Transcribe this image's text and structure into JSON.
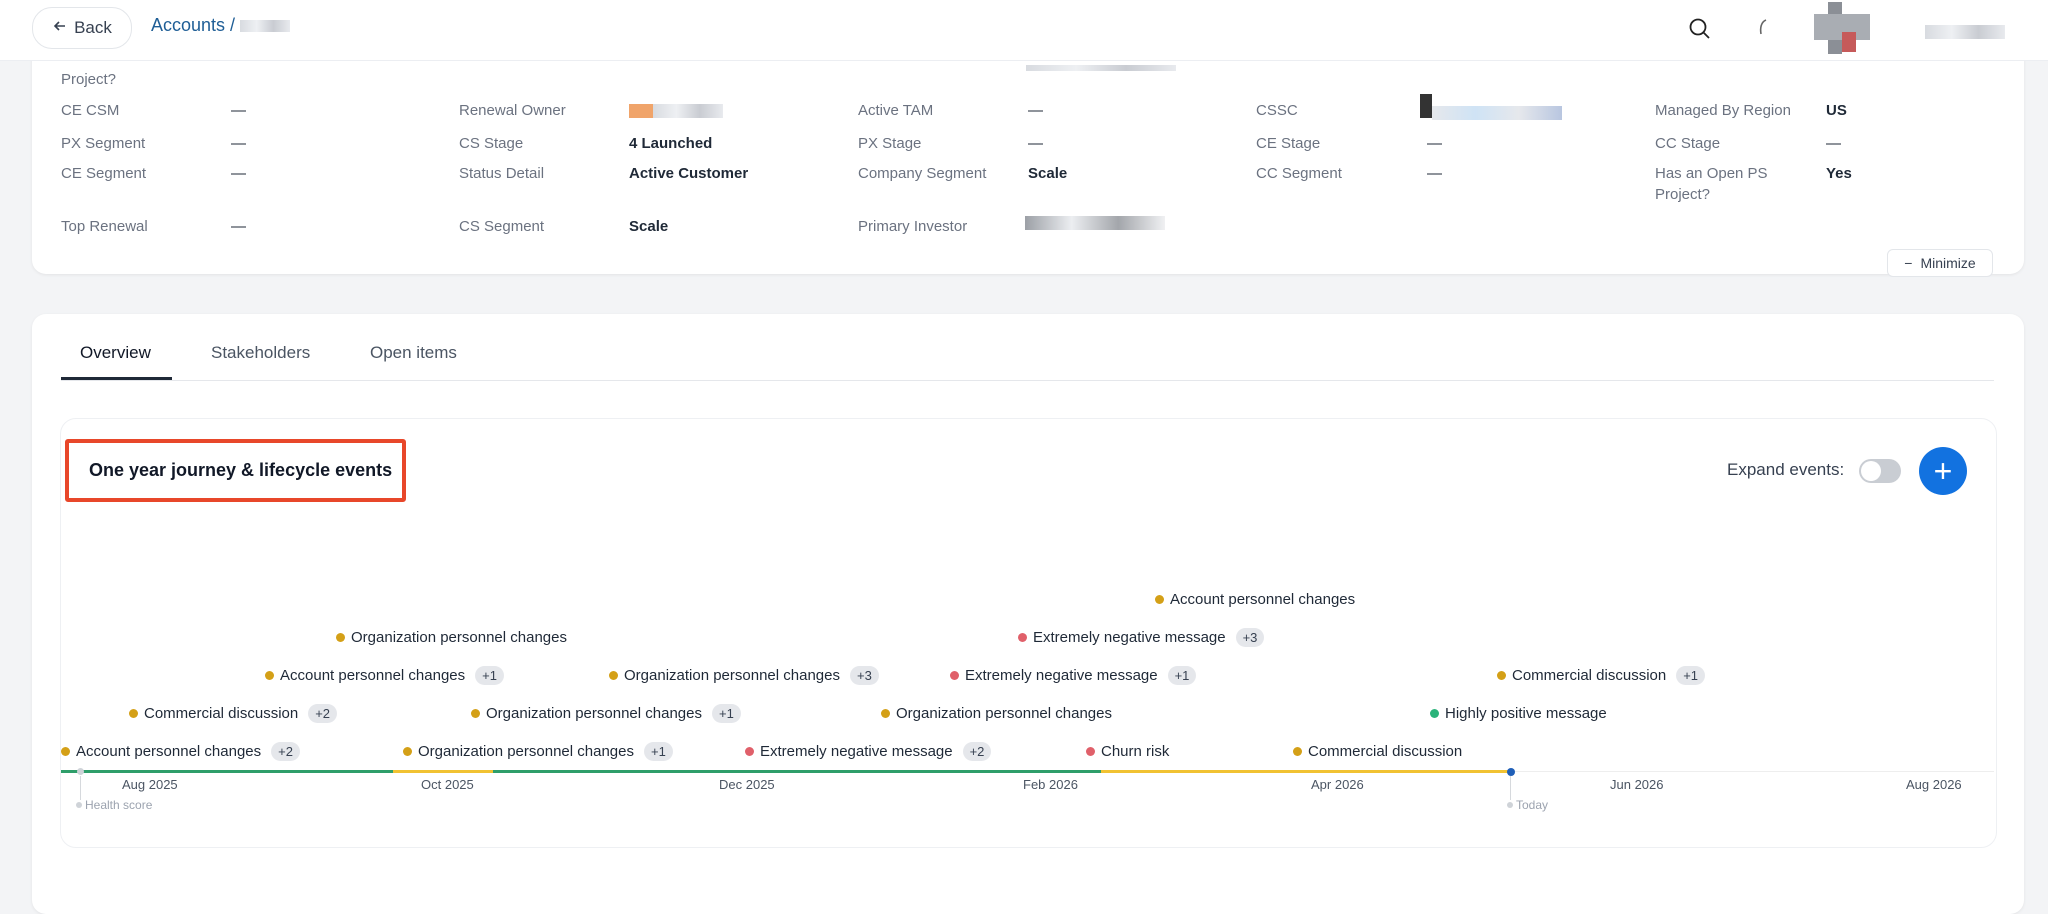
{
  "header": {
    "back_label": "Back",
    "breadcrumb_root": "Accounts /"
  },
  "details": {
    "top_row_labels": [
      "Project?"
    ],
    "rows": [
      [
        {
          "label": "CE CSM",
          "value": "—"
        },
        {
          "label": "Renewal Owner",
          "value": ""
        },
        {
          "label": "Active TAM",
          "value": "—"
        },
        {
          "label": "CSSC",
          "value": ""
        },
        {
          "label": "Managed By Region",
          "value": "US"
        }
      ],
      [
        {
          "label": "PX Segment",
          "value": "—"
        },
        {
          "label": "CS Stage",
          "value": "4 Launched"
        },
        {
          "label": "PX Stage",
          "value": "—"
        },
        {
          "label": "CE Stage",
          "value": "—"
        },
        {
          "label": "CC Stage",
          "value": "—"
        }
      ],
      [
        {
          "label": "CE Segment",
          "value": "—"
        },
        {
          "label": "Status Detail",
          "value": "Active Customer"
        },
        {
          "label": "Company Segment",
          "value": "Scale"
        },
        {
          "label": "CC Segment",
          "value": "—"
        },
        {
          "label": "Has an Open PS",
          "value": "Yes"
        }
      ],
      [
        {
          "label": "Top Renewal",
          "value": "—"
        },
        {
          "label": "CS Segment",
          "value": "Scale"
        },
        {
          "label": "Primary Investor",
          "value": ""
        }
      ]
    ],
    "has_open_ps_line2": "Project?",
    "minimize_label": "Minimize"
  },
  "tabs": [
    "Overview",
    "Stakeholders",
    "Open items"
  ],
  "journey": {
    "title": "One year journey & lifecycle events",
    "expand_label": "Expand events",
    "expand_colon": ":",
    "add_symbol": "+",
    "health_score_label": "Health score",
    "today_label": "Today",
    "months": [
      "Aug 2025",
      "Oct 2025",
      "Dec 2025",
      "Feb 2026",
      "Apr 2026",
      "Jun 2026",
      "Aug 2026"
    ],
    "colors": {
      "yellow": "#d4a017",
      "red": "#e0606a",
      "green": "#2bb37a",
      "line_green": "#2e9e6a",
      "line_yellow": "#f1c232",
      "accent": "#1272e0",
      "highlight": "#e8472a"
    },
    "events": [
      {
        "label": "Account personnel changes",
        "badge": "+2",
        "color": "yellow"
      },
      {
        "label": "Commercial discussion",
        "badge": "+2",
        "color": "yellow"
      },
      {
        "label": "Account personnel changes",
        "badge": "+1",
        "color": "yellow"
      },
      {
        "label": "Organization personnel changes",
        "badge": "",
        "color": "yellow"
      },
      {
        "label": "Organization personnel changes",
        "badge": "+1",
        "color": "yellow"
      },
      {
        "label": "Organization personnel changes",
        "badge": "+1",
        "color": "yellow"
      },
      {
        "label": "Organization personnel changes",
        "badge": "+3",
        "color": "yellow"
      },
      {
        "label": "Extremely negative message",
        "badge": "+2",
        "color": "red"
      },
      {
        "label": "Organization personnel changes",
        "badge": "",
        "color": "yellow"
      },
      {
        "label": "Extremely negative message",
        "badge": "+1",
        "color": "red"
      },
      {
        "label": "Extremely negative message",
        "badge": "+3",
        "color": "red"
      },
      {
        "label": "Account personnel changes",
        "badge": "",
        "color": "yellow"
      },
      {
        "label": "Churn risk",
        "badge": "",
        "color": "red"
      },
      {
        "label": "Commercial discussion",
        "badge": "",
        "color": "yellow"
      },
      {
        "label": "Highly positive message",
        "badge": "",
        "color": "green"
      },
      {
        "label": "Commercial discussion",
        "badge": "+1",
        "color": "yellow"
      }
    ]
  }
}
